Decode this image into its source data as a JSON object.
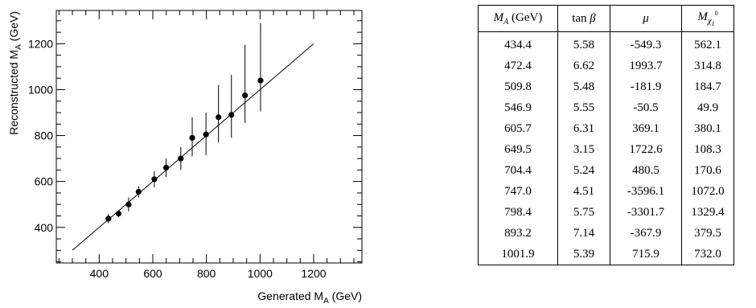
{
  "chart_data": {
    "type": "scatter",
    "xlabel": "Generated M",
    "xlabel_sub": "A",
    "xlabel_unit": "(GeV)",
    "ylabel": "Reconstructed M",
    "ylabel_sub": "A",
    "ylabel_unit": "(GeV)",
    "xlim": [
      240,
      1380
    ],
    "ylim": [
      245,
      1345
    ],
    "x_ticks": [
      400,
      600,
      800,
      1000,
      1200
    ],
    "y_ticks": [
      400,
      600,
      800,
      1000,
      1200
    ],
    "grid": false,
    "reference_line": {
      "x": [
        300,
        1200
      ],
      "y": [
        300,
        1200
      ]
    },
    "points": [
      {
        "x": 434.4,
        "y": 438,
        "err_low": 20,
        "err_high": 20
      },
      {
        "x": 472.4,
        "y": 460,
        "err_low": 15,
        "err_high": 15
      },
      {
        "x": 509.8,
        "y": 500,
        "err_low": 30,
        "err_high": 30
      },
      {
        "x": 546.9,
        "y": 555,
        "err_low": 25,
        "err_high": 25
      },
      {
        "x": 605.7,
        "y": 610,
        "err_low": 35,
        "err_high": 35
      },
      {
        "x": 649.5,
        "y": 660,
        "err_low": 40,
        "err_high": 40
      },
      {
        "x": 704.4,
        "y": 700,
        "err_low": 50,
        "err_high": 50
      },
      {
        "x": 747.0,
        "y": 790,
        "err_low": 80,
        "err_high": 90
      },
      {
        "x": 798.4,
        "y": 805,
        "err_low": 90,
        "err_high": 95
      },
      {
        "x": 845.0,
        "y": 880,
        "err_low": 110,
        "err_high": 140
      },
      {
        "x": 893.2,
        "y": 890,
        "err_low": 100,
        "err_high": 175
      },
      {
        "x": 944.0,
        "y": 975,
        "err_low": 120,
        "err_high": 220
      },
      {
        "x": 1001.9,
        "y": 1040,
        "err_low": 135,
        "err_high": 250
      }
    ]
  },
  "table": {
    "headers": [
      {
        "main": "M",
        "sub": "A",
        "suffix": " (GeV)"
      },
      {
        "main": "tan ",
        "greek": "β"
      },
      {
        "greek": "μ"
      },
      {
        "main": "M",
        "sub": "χ",
        "sub2": "1",
        "sup": "0"
      }
    ],
    "rows": [
      [
        "434.4",
        "5.58",
        "-549.3",
        "562.1"
      ],
      [
        "472.4",
        "6.62",
        "1993.7",
        "314.8"
      ],
      [
        "509.8",
        "5.48",
        "-181.9",
        "184.7"
      ],
      [
        "546.9",
        "5.55",
        "-50.5",
        "49.9"
      ],
      [
        "605.7",
        "6.31",
        "369.1",
        "380.1"
      ],
      [
        "649.5",
        "3.15",
        "1722.6",
        "108.3"
      ],
      [
        "704.4",
        "5.24",
        "480.5",
        "170.6"
      ],
      [
        "747.0",
        "4.51",
        "-3596.1",
        "1072.0"
      ],
      [
        "798.4",
        "5.75",
        "-3301.7",
        "1329.4"
      ],
      [
        "893.2",
        "7.14",
        "-367.9",
        "379.5"
      ],
      [
        "1001.9",
        "5.39",
        "715.9",
        "732.0"
      ]
    ]
  }
}
